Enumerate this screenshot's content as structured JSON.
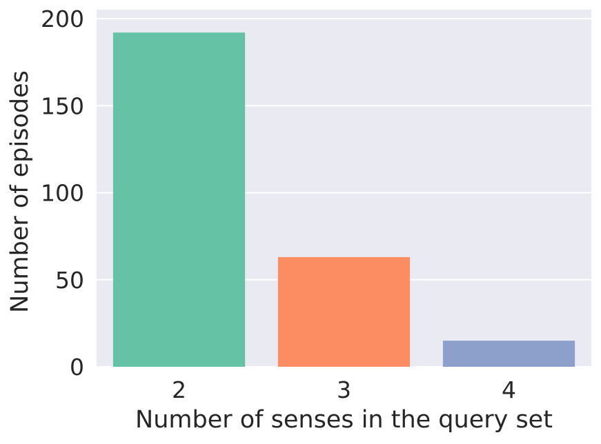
{
  "chart_data": {
    "type": "bar",
    "categories": [
      "2",
      "3",
      "4"
    ],
    "values": [
      192,
      63,
      15
    ],
    "colors": [
      "#66c2a5",
      "#fc8d62",
      "#8da0cb"
    ],
    "title": "",
    "xlabel": "Number of senses in the query set",
    "ylabel": "Number of episodes",
    "ylim": [
      0,
      200
    ],
    "yticks": [
      0,
      50,
      100,
      150,
      200
    ],
    "grid": true,
    "style": {
      "plot_background": "#eaeaf2",
      "grid_color": "#ffffff",
      "text_color": "#262626"
    }
  }
}
